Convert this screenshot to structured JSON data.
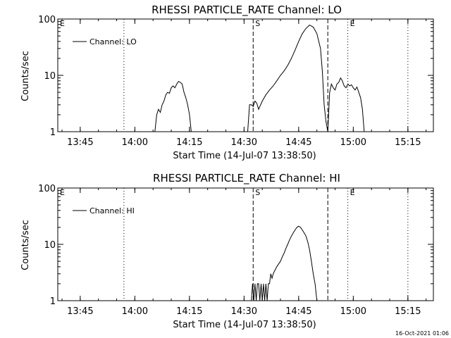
{
  "footer": {
    "date_stamp": "16-Oct-2021 01:06"
  },
  "chart_data": [
    {
      "type": "line",
      "title": "RHESSI PARTICLE_RATE Channel: LO",
      "xlabel": "Start Time (14-Jul-07 13:38:50)",
      "ylabel": "Counts/sec",
      "yscale": "log",
      "ylim": [
        1,
        100
      ],
      "xlim": [
        "13:38:50",
        "15:22:00"
      ],
      "x_ticks": [
        "13:45",
        "14:00",
        "14:15",
        "14:30",
        "14:45",
        "15:00",
        "15:15"
      ],
      "y_ticks": [
        "1",
        "10",
        "100"
      ],
      "legend": {
        "position": "top-left",
        "entries": [
          "Channel: LO"
        ]
      },
      "series": [
        {
          "name": "Channel: LO",
          "x": [
            "14:05:30",
            "14:06:00",
            "14:06:30",
            "14:07:00",
            "14:07:30",
            "14:08:00",
            "14:08:30",
            "14:09:00",
            "14:09:30",
            "14:10:00",
            "14:10:30",
            "14:11:00",
            "14:11:30",
            "14:12:00",
            "14:12:30",
            "14:13:00",
            "14:13:30",
            "14:14:00",
            "14:14:30",
            "14:15:00",
            "14:15:30",
            "14:31:00",
            "14:31:30",
            "14:32:00",
            "14:32:30",
            "14:33:00",
            "14:33:30",
            "14:34:00",
            "14:35:00",
            "14:36:00",
            "14:37:00",
            "14:38:00",
            "14:39:00",
            "14:40:00",
            "14:41:00",
            "14:42:00",
            "14:43:00",
            "14:44:00",
            "14:45:00",
            "14:46:00",
            "14:47:00",
            "14:48:00",
            "14:49:00",
            "14:50:00",
            "14:51:00",
            "14:51:30",
            "14:52:00",
            "14:52:30",
            "14:53:00",
            "14:53:30",
            "14:54:00",
            "14:54:30",
            "14:55:00",
            "14:55:30",
            "14:56:00",
            "14:56:30",
            "14:57:00",
            "14:57:30",
            "14:58:00",
            "14:58:30",
            "14:59:00",
            "14:59:30",
            "15:00:00",
            "15:00:30",
            "15:01:00",
            "15:01:30",
            "15:02:00",
            "15:02:30",
            "15:03:00"
          ],
          "values": [
            1,
            2,
            2.5,
            2.2,
            3,
            3.5,
            4.5,
            5,
            4.8,
            6,
            6.5,
            6,
            7,
            7.8,
            7.5,
            7,
            5,
            4,
            3,
            2,
            1,
            1,
            3,
            3,
            2.8,
            3.5,
            3.2,
            2.5,
            3.5,
            4.5,
            5.5,
            6.5,
            8,
            10,
            12,
            15,
            20,
            28,
            40,
            55,
            68,
            78,
            72,
            55,
            30,
            12,
            3,
            1.5,
            1,
            5,
            7,
            6,
            5.5,
            7,
            7.5,
            9,
            8,
            6.5,
            6,
            7,
            6.5,
            6.8,
            6,
            5.5,
            6.2,
            5,
            4,
            2.5,
            1
          ]
        }
      ],
      "markers": [
        {
          "label": "E",
          "time": "13:38:50",
          "style": "dotted"
        },
        {
          "label": "",
          "time": "13:57:00",
          "style": "dotted"
        },
        {
          "label": "S",
          "time": "14:32:30",
          "style": "dashed"
        },
        {
          "label": "",
          "time": "14:53:00",
          "style": "dashed"
        },
        {
          "label": "E",
          "time": "14:58:30",
          "style": "dotted"
        },
        {
          "label": "",
          "time": "15:15:00",
          "style": "dotted"
        }
      ]
    },
    {
      "type": "line",
      "title": "RHESSI PARTICLE_RATE Channel: HI",
      "xlabel": "Start Time (14-Jul-07 13:38:50)",
      "ylabel": "Counts/sec",
      "yscale": "log",
      "ylim": [
        1,
        100
      ],
      "xlim": [
        "13:38:50",
        "15:22:00"
      ],
      "x_ticks": [
        "13:45",
        "14:00",
        "14:15",
        "14:30",
        "14:45",
        "15:00",
        "15:15"
      ],
      "y_ticks": [
        "1",
        "10",
        "100"
      ],
      "legend": {
        "position": "top-left",
        "entries": [
          "Channel: HI"
        ]
      },
      "series": [
        {
          "name": "Channel: HI",
          "x": [
            "14:32:00",
            "14:32:20",
            "14:32:40",
            "14:33:00",
            "14:33:20",
            "14:33:40",
            "14:34:00",
            "14:34:20",
            "14:34:40",
            "14:35:00",
            "14:35:20",
            "14:35:40",
            "14:36:00",
            "14:36:20",
            "14:36:40",
            "14:37:00",
            "14:37:20",
            "14:37:40",
            "14:38:00",
            "14:38:30",
            "14:39:00",
            "14:39:30",
            "14:40:00",
            "14:40:30",
            "14:41:00",
            "14:41:30",
            "14:42:00",
            "14:42:30",
            "14:43:00",
            "14:43:30",
            "14:44:00",
            "14:44:30",
            "14:45:00",
            "14:45:30",
            "14:46:00",
            "14:46:30",
            "14:47:00",
            "14:47:30",
            "14:48:00",
            "14:48:30",
            "14:49:00",
            "14:49:30",
            "14:50:00"
          ],
          "values": [
            1,
            2,
            1,
            2,
            1,
            2,
            2,
            1,
            2,
            1,
            2,
            1,
            2,
            1,
            2,
            2,
            3,
            2.5,
            3,
            3.5,
            4,
            4.5,
            5,
            6,
            7,
            8.5,
            10,
            12,
            14,
            16,
            18,
            20,
            21,
            20,
            18,
            16,
            14,
            11,
            8,
            5,
            3,
            2,
            1
          ]
        }
      ],
      "markers": [
        {
          "label": "E",
          "time": "13:38:50",
          "style": "dotted"
        },
        {
          "label": "",
          "time": "13:57:00",
          "style": "dotted"
        },
        {
          "label": "S",
          "time": "14:32:30",
          "style": "dashed"
        },
        {
          "label": "",
          "time": "14:53:00",
          "style": "dashed"
        },
        {
          "label": "E",
          "time": "14:58:30",
          "style": "dotted"
        },
        {
          "label": "",
          "time": "15:15:00",
          "style": "dotted"
        }
      ]
    }
  ]
}
